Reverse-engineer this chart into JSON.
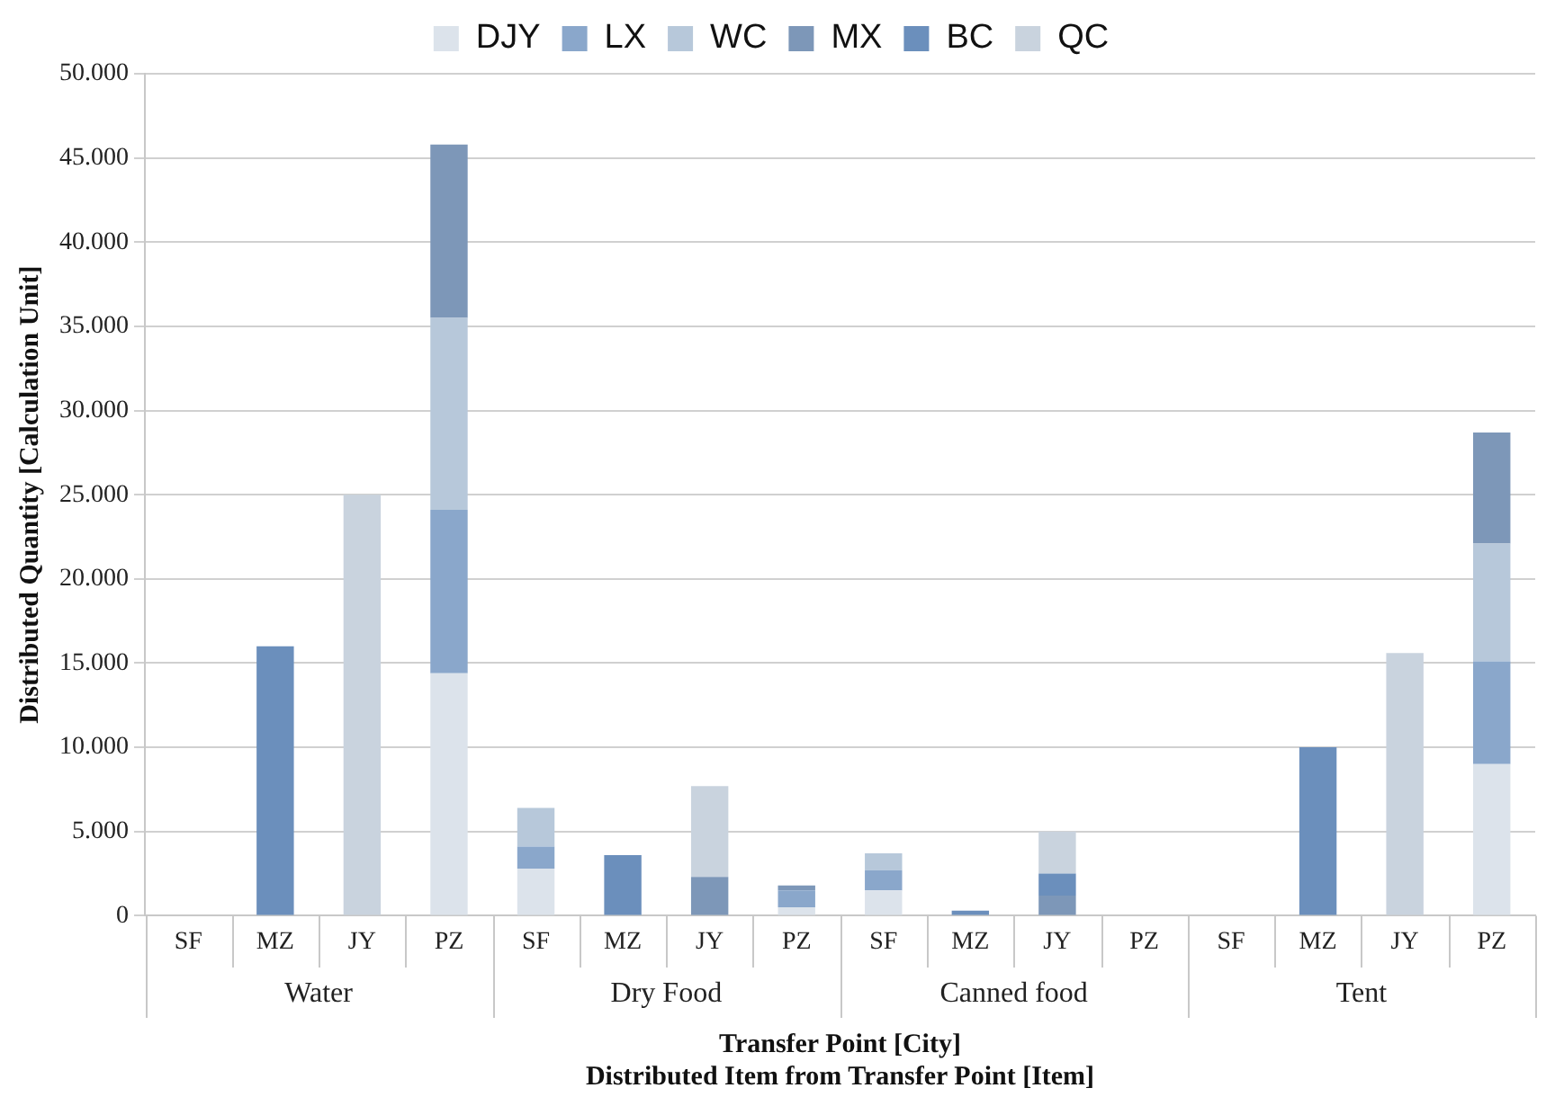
{
  "chart_data": {
    "type": "bar",
    "stacked": true,
    "xlabel": "Transfer Point [City]\nDistributed Item from Transfer Point [Item]",
    "ylabel": "Distributed Quantity [Calculation Unit]",
    "categories": [
      "SF",
      "MZ",
      "JY",
      "PZ",
      "SF",
      "MZ",
      "JY",
      "PZ",
      "SF",
      "MZ",
      "JY",
      "PZ",
      "SF",
      "MZ",
      "JY",
      "PZ"
    ],
    "annotations": [
      "Water",
      "Dry Food",
      "Canned food",
      "Tent"
    ],
    "series": [
      {
        "name": "DJY",
        "color": "#dce3eb",
        "values": [
          0,
          0,
          0,
          14400,
          2800,
          0,
          0,
          500,
          1500,
          0,
          0,
          0,
          0,
          0,
          0,
          9000
        ]
      },
      {
        "name": "LX",
        "color": "#8aa7cb",
        "values": [
          0,
          0,
          0,
          9700,
          1300,
          0,
          0,
          1000,
          1200,
          0,
          0,
          0,
          0,
          0,
          0,
          6100
        ]
      },
      {
        "name": "WC",
        "color": "#b7c8da",
        "values": [
          0,
          0,
          0,
          11400,
          2300,
          0,
          0,
          0,
          1000,
          0,
          0,
          0,
          0,
          0,
          0,
          7000
        ]
      },
      {
        "name": "MX",
        "color": "#7d97b8",
        "values": [
          0,
          0,
          0,
          10300,
          0,
          0,
          2300,
          300,
          0,
          0,
          1200,
          0,
          0,
          0,
          0,
          6600
        ]
      },
      {
        "name": "BC",
        "color": "#6b8fbc",
        "values": [
          0,
          16000,
          0,
          0,
          0,
          3600,
          0,
          0,
          0,
          300,
          1300,
          0,
          0,
          10000,
          0,
          0
        ]
      },
      {
        "name": "QC",
        "color": "#c9d3de",
        "values": [
          0,
          0,
          25000,
          0,
          0,
          0,
          5400,
          0,
          0,
          0,
          2500,
          0,
          0,
          0,
          15600,
          0
        ]
      }
    ],
    "ylim": [
      0,
      50000
    ],
    "yticks": [
      0,
      {
        "value": 5000,
        "label": "5.000"
      },
      {
        "value": 10000,
        "label": "10.000"
      },
      {
        "value": 15000,
        "label": "15.000"
      },
      {
        "value": 20000,
        "label": "20.000"
      },
      {
        "value": 25000,
        "label": "25.000"
      },
      {
        "value": 30000,
        "label": "30.000"
      },
      {
        "value": 35000,
        "label": "35.000"
      },
      {
        "value": 40000,
        "label": "40.000"
      },
      {
        "value": 45000,
        "label": "45.000"
      },
      {
        "value": 50000,
        "label": "50.000"
      }
    ],
    "grid": "y",
    "legend": "top"
  }
}
